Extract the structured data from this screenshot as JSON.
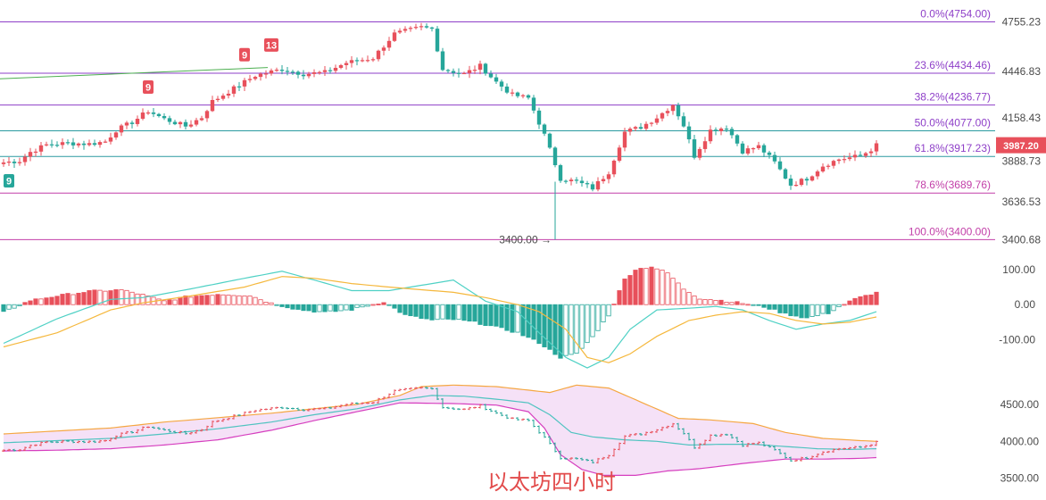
{
  "colors": {
    "up": "#e8505b",
    "down": "#26a69a",
    "fib_line": "#8e3fc8",
    "fib_text": "#8e3fc8",
    "fib_low_text": "#c23fa8",
    "macd_dif": "#4fd1c5",
    "macd_dea": "#f5b83d",
    "boll_upper": "#f5a742",
    "boll_lower": "#d63fbf",
    "boll_mid": "#4fc3c0",
    "boll_fill": "#f3dcf6",
    "trend_line": "#4caf50",
    "price_tag": "#e8505b",
    "caption": "#e24b4b"
  },
  "caption": "以太坊四小时",
  "chart_data": [
    {
      "type": "candlestick",
      "title": "",
      "interval": "4h",
      "y_ticks": [
        "4755.23",
        "4446.83",
        "4158.43",
        "3888.73",
        "3636.53",
        "3400.68"
      ],
      "ylim": [
        3380,
        4790
      ],
      "last_price": "3987.20",
      "low_label": "3400.00",
      "fib_levels": [
        {
          "label": "0.0%(4754.00)",
          "value": 4754.0
        },
        {
          "label": "23.6%(4434.46)",
          "value": 4434.46
        },
        {
          "label": "38.2%(4236.77)",
          "value": 4236.77
        },
        {
          "label": "50.0%(4077.00)",
          "value": 4077.0
        },
        {
          "label": "61.8%(3917.23)",
          "value": 3917.23
        },
        {
          "label": "78.6%(3689.76)",
          "value": 3689.76
        },
        {
          "label": "100.0%(3400.00)",
          "value": 3400.0
        }
      ],
      "markers": [
        {
          "label": "9",
          "index": 1,
          "type": "down"
        },
        {
          "label": "9",
          "index": 27,
          "type": "up"
        },
        {
          "label": "9",
          "index": 45,
          "type": "up"
        },
        {
          "label": "13",
          "index": 50,
          "type": "up"
        }
      ],
      "close_anchors": [
        [
          0,
          3880
        ],
        [
          3,
          3890
        ],
        [
          5,
          3945
        ],
        [
          8,
          3990
        ],
        [
          12,
          4000
        ],
        [
          16,
          3995
        ],
        [
          19,
          4010
        ],
        [
          21,
          4080
        ],
        [
          24,
          4130
        ],
        [
          27,
          4200
        ],
        [
          30,
          4150
        ],
        [
          34,
          4105
        ],
        [
          37,
          4160
        ],
        [
          39,
          4260
        ],
        [
          43,
          4340
        ],
        [
          47,
          4420
        ],
        [
          52,
          4460
        ],
        [
          56,
          4430
        ],
        [
          60,
          4440
        ],
        [
          64,
          4500
        ],
        [
          69,
          4530
        ],
        [
          73,
          4680
        ],
        [
          78,
          4720
        ],
        [
          80,
          4710
        ],
        [
          82,
          4460
        ],
        [
          86,
          4430
        ],
        [
          89,
          4480
        ],
        [
          92,
          4380
        ],
        [
          95,
          4300
        ],
        [
          98,
          4280
        ],
        [
          101,
          4050
        ],
        [
          104,
          3780
        ],
        [
          107,
          3760
        ],
        [
          110,
          3720
        ],
        [
          113,
          3820
        ],
        [
          116,
          4070
        ],
        [
          119,
          4100
        ],
        [
          122,
          4160
        ],
        [
          125,
          4240
        ],
        [
          127,
          4110
        ],
        [
          129,
          3920
        ],
        [
          132,
          4080
        ],
        [
          135,
          4100
        ],
        [
          138,
          3950
        ],
        [
          141,
          3980
        ],
        [
          144,
          3880
        ],
        [
          147,
          3740
        ],
        [
          150,
          3780
        ],
        [
          153,
          3860
        ],
        [
          156,
          3900
        ],
        [
          160,
          3920
        ],
        [
          162,
          3960
        ],
        [
          163,
          3987
        ]
      ]
    },
    {
      "type": "bar",
      "title": "",
      "indicator": "MACD",
      "y_ticks": [
        "100.00",
        "0.00",
        "-100.00"
      ],
      "ylim": [
        -200,
        130
      ],
      "hist_anchors": [
        [
          0,
          -22
        ],
        [
          5,
          12
        ],
        [
          10,
          25
        ],
        [
          16,
          38
        ],
        [
          22,
          42
        ],
        [
          26,
          28
        ],
        [
          30,
          10
        ],
        [
          34,
          22
        ],
        [
          40,
          30
        ],
        [
          46,
          26
        ],
        [
          50,
          4
        ],
        [
          55,
          -14
        ],
        [
          60,
          -22
        ],
        [
          65,
          -14
        ],
        [
          71,
          8
        ],
        [
          75,
          -30
        ],
        [
          80,
          -44
        ],
        [
          84,
          -42
        ],
        [
          88,
          -50
        ],
        [
          92,
          -64
        ],
        [
          96,
          -80
        ],
        [
          100,
          -108
        ],
        [
          104,
          -150
        ],
        [
          107,
          -140
        ],
        [
          110,
          -92
        ],
        [
          113,
          -30
        ],
        [
          116,
          72
        ],
        [
          118,
          100
        ],
        [
          121,
          108
        ],
        [
          124,
          90
        ],
        [
          127,
          45
        ],
        [
          130,
          18
        ],
        [
          134,
          12
        ],
        [
          138,
          4
        ],
        [
          142,
          -6
        ],
        [
          146,
          -26
        ],
        [
          150,
          -38
        ],
        [
          154,
          -24
        ],
        [
          156,
          -6
        ],
        [
          159,
          16
        ],
        [
          162,
          30
        ],
        [
          163,
          34
        ]
      ],
      "dif_anchors": [
        [
          0,
          -110
        ],
        [
          10,
          -40
        ],
        [
          20,
          15
        ],
        [
          26,
          20
        ],
        [
          35,
          45
        ],
        [
          45,
          75
        ],
        [
          52,
          95
        ],
        [
          58,
          70
        ],
        [
          65,
          40
        ],
        [
          72,
          40
        ],
        [
          80,
          60
        ],
        [
          84,
          70
        ],
        [
          90,
          10
        ],
        [
          96,
          -20
        ],
        [
          100,
          -80
        ],
        [
          105,
          -150
        ],
        [
          109,
          -180
        ],
        [
          113,
          -150
        ],
        [
          117,
          -70
        ],
        [
          122,
          -15
        ],
        [
          128,
          -10
        ],
        [
          133,
          -5
        ],
        [
          138,
          -15
        ],
        [
          143,
          -45
        ],
        [
          148,
          -70
        ],
        [
          153,
          -55
        ],
        [
          158,
          -45
        ],
        [
          163,
          -20
        ]
      ],
      "dea_anchors": [
        [
          0,
          -120
        ],
        [
          10,
          -80
        ],
        [
          20,
          -15
        ],
        [
          26,
          5
        ],
        [
          35,
          25
        ],
        [
          45,
          50
        ],
        [
          52,
          80
        ],
        [
          58,
          75
        ],
        [
          65,
          60
        ],
        [
          72,
          50
        ],
        [
          80,
          40
        ],
        [
          84,
          35
        ],
        [
          90,
          20
        ],
        [
          96,
          0
        ],
        [
          100,
          -20
        ],
        [
          105,
          -70
        ],
        [
          109,
          -150
        ],
        [
          113,
          -165
        ],
        [
          117,
          -140
        ],
        [
          122,
          -90
        ],
        [
          128,
          -45
        ],
        [
          133,
          -30
        ],
        [
          138,
          -20
        ],
        [
          143,
          -25
        ],
        [
          148,
          -45
        ],
        [
          153,
          -55
        ],
        [
          158,
          -50
        ],
        [
          163,
          -35
        ]
      ]
    },
    {
      "type": "line",
      "title": "",
      "indicator": "BOLL",
      "y_ticks": [
        "4500.00",
        "4000.00",
        "3500.00"
      ],
      "ylim": [
        3400,
        4800
      ],
      "upper_anchors": [
        [
          0,
          4100
        ],
        [
          10,
          4140
        ],
        [
          20,
          4180
        ],
        [
          30,
          4260
        ],
        [
          40,
          4320
        ],
        [
          50,
          4380
        ],
        [
          58,
          4440
        ],
        [
          66,
          4500
        ],
        [
          74,
          4620
        ],
        [
          78,
          4740
        ],
        [
          84,
          4760
        ],
        [
          92,
          4740
        ],
        [
          97,
          4700
        ],
        [
          102,
          4660
        ],
        [
          107,
          4760
        ],
        [
          113,
          4720
        ],
        [
          120,
          4500
        ],
        [
          126,
          4310
        ],
        [
          132,
          4290
        ],
        [
          140,
          4240
        ],
        [
          146,
          4120
        ],
        [
          153,
          4040
        ],
        [
          160,
          4010
        ],
        [
          163,
          4000
        ]
      ],
      "lower_anchors": [
        [
          0,
          3870
        ],
        [
          10,
          3880
        ],
        [
          20,
          3900
        ],
        [
          30,
          3950
        ],
        [
          40,
          4020
        ],
        [
          50,
          4150
        ],
        [
          58,
          4280
        ],
        [
          66,
          4400
        ],
        [
          74,
          4520
        ],
        [
          84,
          4510
        ],
        [
          92,
          4490
        ],
        [
          98,
          4400
        ],
        [
          101,
          4180
        ],
        [
          104,
          3820
        ],
        [
          108,
          3620
        ],
        [
          112,
          3540
        ],
        [
          118,
          3540
        ],
        [
          124,
          3600
        ],
        [
          130,
          3630
        ],
        [
          138,
          3700
        ],
        [
          146,
          3760
        ],
        [
          153,
          3760
        ],
        [
          160,
          3770
        ],
        [
          163,
          3780
        ]
      ],
      "mid_anchors": [
        [
          0,
          3980
        ],
        [
          10,
          4010
        ],
        [
          20,
          4040
        ],
        [
          30,
          4100
        ],
        [
          40,
          4170
        ],
        [
          50,
          4260
        ],
        [
          58,
          4360
        ],
        [
          66,
          4440
        ],
        [
          74,
          4560
        ],
        [
          80,
          4620
        ],
        [
          86,
          4610
        ],
        [
          92,
          4570
        ],
        [
          98,
          4520
        ],
        [
          102,
          4360
        ],
        [
          106,
          4120
        ],
        [
          110,
          4060
        ],
        [
          116,
          4020
        ],
        [
          122,
          4000
        ],
        [
          128,
          3950
        ],
        [
          134,
          3960
        ],
        [
          140,
          3960
        ],
        [
          146,
          3930
        ],
        [
          152,
          3900
        ],
        [
          158,
          3890
        ],
        [
          163,
          3900
        ]
      ]
    }
  ]
}
